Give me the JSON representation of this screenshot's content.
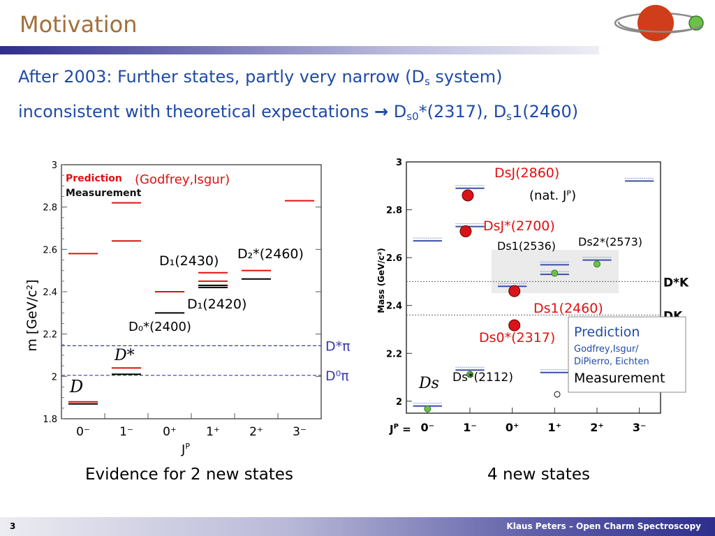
{
  "slide": {
    "title": "Motivation",
    "line1_pre": "After 2003: Further states, partly very narrow (D",
    "line1_sub": "s",
    "line1_post": " system)",
    "line2_pre": "inconsistent with theoretical expectations ",
    "line2_arrow": "→",
    "line2_d1": " D",
    "line2_sub1": "s0",
    "line2_mid": "*(2317), D",
    "line2_sub2": "s",
    "line2_post": "1(2460)",
    "caption_left": "Evidence for 2 new states",
    "caption_right": "4 new states",
    "page_number": "3",
    "footer": "Klaus Peters – Open Charm Spectroscopy"
  },
  "colors": {
    "title": "#a0703a",
    "text": "#1f4aa8",
    "prediction": "#e01010",
    "measurement": "#000000",
    "threshold": "#3a3ab0"
  },
  "chart_data": [
    {
      "type": "scatter",
      "ylabel": "m [GeV/c²]",
      "xlabel": "J",
      "xlabel_sup": "P",
      "ylim": [
        1.8,
        3.0
      ],
      "categories": [
        "0⁻",
        "1⁻",
        "0⁺",
        "1⁺",
        "2⁺",
        "3⁻"
      ],
      "yticks": [
        "1.8",
        "2",
        "2.2",
        "2.4",
        "2.6",
        "2.8",
        "3"
      ],
      "legend": {
        "prediction": "Prediction",
        "measurement": "Measurement",
        "cite": "(Godfrey,Isgur)"
      },
      "prediction_levels": [
        {
          "cat": 0,
          "m": 2.58
        },
        {
          "cat": 0,
          "m": 1.88
        },
        {
          "cat": 1,
          "m": 2.82
        },
        {
          "cat": 1,
          "m": 2.64
        },
        {
          "cat": 1,
          "m": 2.04
        },
        {
          "cat": 2,
          "m": 2.4
        },
        {
          "cat": 3,
          "m": 2.49
        },
        {
          "cat": 3,
          "m": 2.45
        },
        {
          "cat": 4,
          "m": 2.5
        },
        {
          "cat": 5,
          "m": 2.83
        }
      ],
      "measurement_levels": [
        {
          "cat": 0,
          "m": 1.87
        },
        {
          "cat": 1,
          "m": 2.01
        },
        {
          "cat": 2,
          "m": 2.3
        },
        {
          "cat": 3,
          "m": 2.43
        },
        {
          "cat": 3,
          "m": 2.42
        },
        {
          "cat": 4,
          "m": 2.46
        }
      ],
      "thresholds": [
        {
          "m": 2.145,
          "label": "D*π"
        },
        {
          "m": 2.005,
          "label": "D⁰π"
        }
      ],
      "annotations": [
        {
          "text": "D",
          "cat": 0,
          "m": 1.95
        },
        {
          "text": "D*",
          "cat": 1,
          "m": 2.1
        },
        {
          "text": "D₀*(2400)",
          "cat": 2,
          "m": 2.22
        },
        {
          "text": "D₁(2430)",
          "cat": 2,
          "m": 2.54
        },
        {
          "text": "D₂*(2460)",
          "cat": 4,
          "m": 2.56
        },
        {
          "text": "D₁(2420)",
          "cat": 3,
          "m": 2.3
        }
      ]
    },
    {
      "type": "scatter",
      "ylabel": "Mass (GeV/c²)",
      "xlabel": "J",
      "xlabel_sup": "P",
      "xlabel_suffix": " =",
      "ylim": [
        1.95,
        3.0
      ],
      "categories": [
        "0⁻",
        "1⁻",
        "0⁺",
        "1⁺",
        "2⁺",
        "3⁻"
      ],
      "yticks": [
        "2",
        "2.2",
        "2.4",
        "2.6",
        "2.8",
        "3"
      ],
      "legend": {
        "prediction": "Prediction",
        "authors1": "Godfrey,Isgur/",
        "authors2": "DiPierro, Eichten",
        "measurement": "Measurement"
      },
      "prediction_levels": [
        {
          "cat": 0,
          "m": 2.67
        },
        {
          "cat": 0,
          "m": 1.98
        },
        {
          "cat": 1,
          "m": 2.89
        },
        {
          "cat": 1,
          "m": 2.73
        },
        {
          "cat": 1,
          "m": 2.13
        },
        {
          "cat": 2,
          "m": 2.48
        },
        {
          "cat": 3,
          "m": 2.57
        },
        {
          "cat": 3,
          "m": 2.53
        },
        {
          "cat": 3,
          "m": 2.12
        },
        {
          "cat": 4,
          "m": 2.59
        },
        {
          "cat": 5,
          "m": 2.92
        }
      ],
      "measurement_points": [
        {
          "cat": 0,
          "m": 1.968
        },
        {
          "cat": 1,
          "m": 2.112
        },
        {
          "cat": 3,
          "m": 2.535
        },
        {
          "cat": 4,
          "m": 2.573
        }
      ],
      "new_states": [
        {
          "cat": 0.95,
          "m": 2.86
        },
        {
          "cat": 0.9,
          "m": 2.71
        },
        {
          "cat": 2.05,
          "m": 2.46
        },
        {
          "cat": 2.05,
          "m": 2.317
        }
      ],
      "thresholds": [
        {
          "m": 2.5,
          "label": "D*K"
        },
        {
          "m": 2.36,
          "label": "DK"
        }
      ],
      "annotations": [
        {
          "text": "DsJ(2860)",
          "red": true
        },
        {
          "text": "(nat. Jᴾ)",
          "red": false
        },
        {
          "text": "DsJ*(2700)",
          "red": true
        },
        {
          "text": "Ds1(2536)",
          "red": false
        },
        {
          "text": "Ds2*(2573)",
          "red": false
        },
        {
          "text": "Ds1(2460)",
          "red": true
        },
        {
          "text": "Ds0*(2317)",
          "red": true
        },
        {
          "text": "Ds",
          "red": false
        },
        {
          "text": "Ds*(2112)",
          "red": false
        }
      ]
    }
  ]
}
